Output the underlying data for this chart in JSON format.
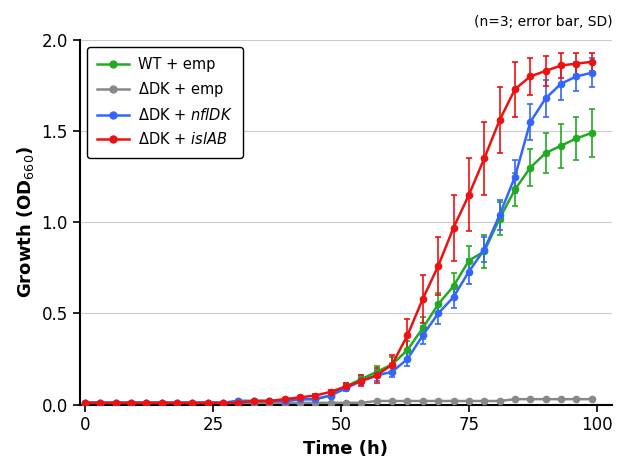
{
  "title_note": "(n=3; error bar, SD)",
  "xlabel": "Time (h)",
  "ylabel": "Growth (OD$_{660}$)",
  "xlim": [
    -1,
    103
  ],
  "ylim": [
    0,
    2.0
  ],
  "yticks": [
    0,
    0.5,
    1.0,
    1.5,
    2.0
  ],
  "xticks": [
    0,
    25,
    50,
    75,
    100
  ],
  "series": [
    {
      "label": "WT + emp",
      "color": "#22aa22",
      "x": [
        0,
        3,
        6,
        9,
        12,
        15,
        18,
        21,
        24,
        27,
        30,
        33,
        36,
        39,
        42,
        45,
        48,
        51,
        54,
        57,
        60,
        63,
        66,
        69,
        72,
        75,
        78,
        81,
        84,
        87,
        90,
        93,
        96,
        99
      ],
      "y": [
        0.01,
        0.01,
        0.01,
        0.01,
        0.01,
        0.01,
        0.01,
        0.01,
        0.01,
        0.01,
        0.02,
        0.02,
        0.02,
        0.02,
        0.03,
        0.03,
        0.05,
        0.1,
        0.14,
        0.18,
        0.22,
        0.3,
        0.42,
        0.55,
        0.65,
        0.79,
        0.84,
        1.02,
        1.18,
        1.3,
        1.38,
        1.42,
        1.46,
        1.49
      ],
      "yerr": [
        0.003,
        0.003,
        0.003,
        0.003,
        0.003,
        0.003,
        0.003,
        0.003,
        0.003,
        0.003,
        0.003,
        0.003,
        0.003,
        0.003,
        0.005,
        0.005,
        0.01,
        0.02,
        0.02,
        0.03,
        0.04,
        0.05,
        0.06,
        0.06,
        0.07,
        0.08,
        0.09,
        0.09,
        0.09,
        0.1,
        0.11,
        0.12,
        0.12,
        0.13
      ]
    },
    {
      "label": "ΔDK + emp",
      "color": "#888888",
      "x": [
        0,
        3,
        6,
        9,
        12,
        15,
        18,
        21,
        24,
        27,
        30,
        33,
        36,
        39,
        42,
        45,
        48,
        51,
        54,
        57,
        60,
        63,
        66,
        69,
        72,
        75,
        78,
        81,
        84,
        87,
        90,
        93,
        96,
        99
      ],
      "y": [
        0.01,
        0.01,
        0.01,
        0.01,
        0.01,
        0.01,
        0.01,
        0.01,
        0.01,
        0.01,
        0.01,
        0.01,
        0.01,
        0.01,
        0.01,
        0.01,
        0.01,
        0.01,
        0.01,
        0.02,
        0.02,
        0.02,
        0.02,
        0.02,
        0.02,
        0.02,
        0.02,
        0.02,
        0.03,
        0.03,
        0.03,
        0.03,
        0.03,
        0.03
      ],
      "yerr": [
        0.001,
        0.001,
        0.001,
        0.001,
        0.001,
        0.001,
        0.001,
        0.001,
        0.001,
        0.001,
        0.001,
        0.001,
        0.001,
        0.001,
        0.001,
        0.001,
        0.001,
        0.001,
        0.001,
        0.001,
        0.001,
        0.001,
        0.001,
        0.001,
        0.001,
        0.001,
        0.001,
        0.001,
        0.001,
        0.001,
        0.001,
        0.001,
        0.001,
        0.001
      ]
    },
    {
      "label": "ΔDK + nflDK",
      "color": "#3366ff",
      "x": [
        0,
        3,
        6,
        9,
        12,
        15,
        18,
        21,
        24,
        27,
        30,
        33,
        36,
        39,
        42,
        45,
        48,
        51,
        54,
        57,
        60,
        63,
        66,
        69,
        72,
        75,
        78,
        81,
        84,
        87,
        90,
        93,
        96,
        99
      ],
      "y": [
        0.01,
        0.01,
        0.01,
        0.01,
        0.01,
        0.01,
        0.01,
        0.01,
        0.01,
        0.01,
        0.02,
        0.02,
        0.02,
        0.02,
        0.03,
        0.03,
        0.05,
        0.09,
        0.13,
        0.16,
        0.18,
        0.25,
        0.38,
        0.5,
        0.59,
        0.73,
        0.85,
        1.04,
        1.25,
        1.55,
        1.68,
        1.76,
        1.8,
        1.82
      ],
      "yerr": [
        0.003,
        0.003,
        0.003,
        0.003,
        0.003,
        0.003,
        0.003,
        0.003,
        0.003,
        0.003,
        0.003,
        0.003,
        0.003,
        0.003,
        0.005,
        0.005,
        0.01,
        0.015,
        0.02,
        0.03,
        0.03,
        0.04,
        0.05,
        0.06,
        0.06,
        0.07,
        0.07,
        0.08,
        0.09,
        0.1,
        0.1,
        0.09,
        0.08,
        0.08
      ]
    },
    {
      "label": "ΔDK + islAB",
      "color": "#ee1111",
      "x": [
        0,
        3,
        6,
        9,
        12,
        15,
        18,
        21,
        24,
        27,
        30,
        33,
        36,
        39,
        42,
        45,
        48,
        51,
        54,
        57,
        60,
        63,
        66,
        69,
        72,
        75,
        78,
        81,
        84,
        87,
        90,
        93,
        96,
        99
      ],
      "y": [
        0.01,
        0.01,
        0.01,
        0.01,
        0.01,
        0.01,
        0.01,
        0.01,
        0.01,
        0.01,
        0.01,
        0.02,
        0.02,
        0.03,
        0.04,
        0.05,
        0.07,
        0.1,
        0.13,
        0.16,
        0.22,
        0.38,
        0.58,
        0.76,
        0.97,
        1.15,
        1.35,
        1.56,
        1.73,
        1.8,
        1.83,
        1.86,
        1.87,
        1.88
      ],
      "yerr": [
        0.003,
        0.003,
        0.003,
        0.003,
        0.003,
        0.003,
        0.003,
        0.003,
        0.003,
        0.003,
        0.003,
        0.003,
        0.003,
        0.005,
        0.005,
        0.01,
        0.01,
        0.02,
        0.03,
        0.04,
        0.05,
        0.09,
        0.13,
        0.16,
        0.18,
        0.2,
        0.2,
        0.18,
        0.15,
        0.1,
        0.08,
        0.07,
        0.06,
        0.05
      ]
    }
  ]
}
